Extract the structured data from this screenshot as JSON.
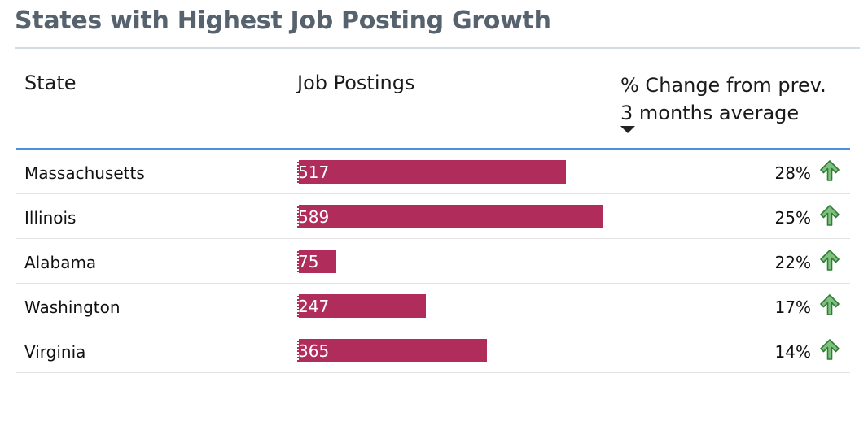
{
  "title": "States with Highest Job Posting Growth",
  "columns": {
    "state": "State",
    "job_postings": "Job Postings",
    "change_line1": "% Change from prev.",
    "change_line2": "3 months average"
  },
  "colors": {
    "bar": "#b02d5b",
    "up_arrow": "#2e7d32",
    "header_rule": "#4a90e2",
    "title": "#56626e"
  },
  "rows": [
    {
      "state": "Massachusetts",
      "postings": "517",
      "change": "28%",
      "icon": "arrow-up-icon"
    },
    {
      "state": "Illinois",
      "postings": "589",
      "change": "25%",
      "icon": "arrow-up-icon"
    },
    {
      "state": "Alabama",
      "postings": "75",
      "change": "22%",
      "icon": "arrow-up-icon"
    },
    {
      "state": "Washington",
      "postings": "247",
      "change": "17%",
      "icon": "arrow-up-icon"
    },
    {
      "state": "Virginia",
      "postings": "365",
      "change": "14%",
      "icon": "arrow-up-icon"
    }
  ]
}
